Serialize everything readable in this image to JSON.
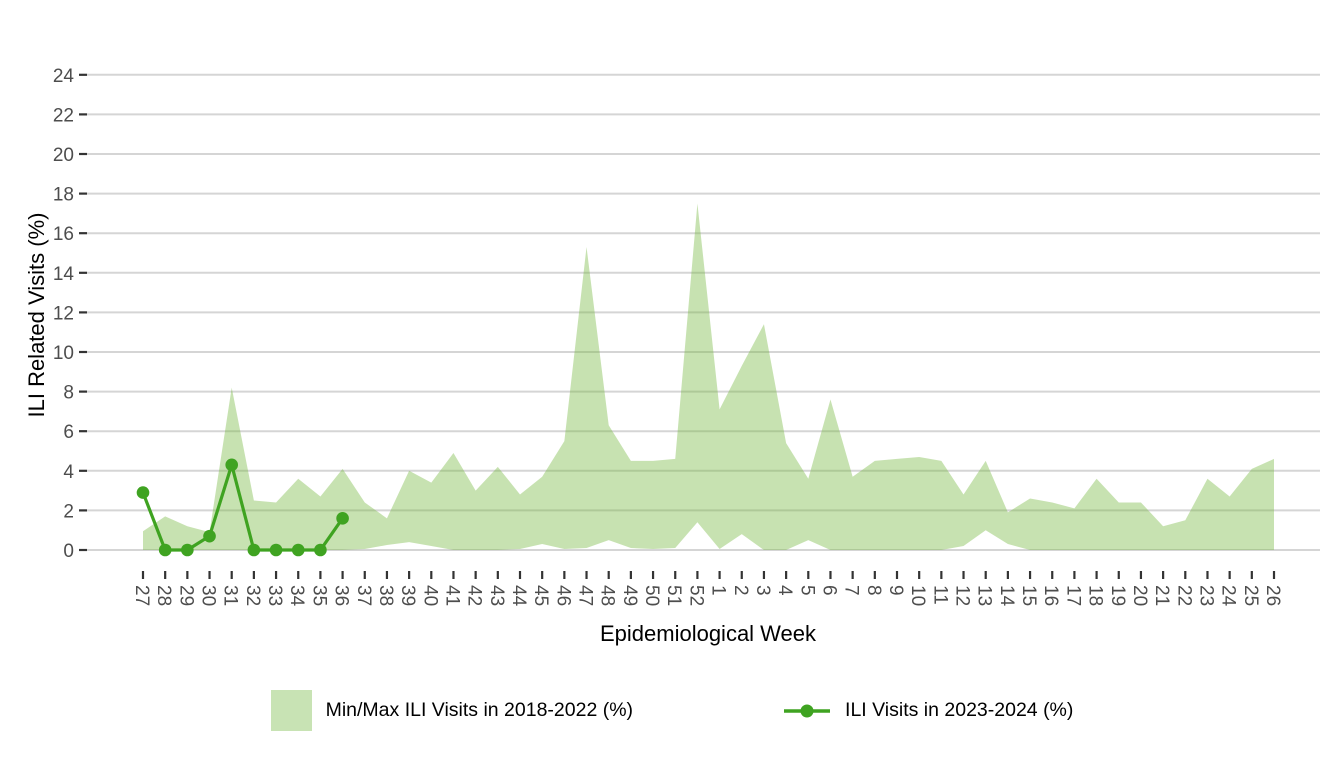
{
  "chart_data": {
    "type": "area",
    "title": "",
    "xlabel": "Epidemiological Week",
    "ylabel": "ILI Related Visits (%)",
    "ylim": [
      0,
      24
    ],
    "yticks": [
      0,
      2,
      4,
      6,
      8,
      10,
      12,
      14,
      16,
      18,
      20,
      22,
      24
    ],
    "grid": "major-horizontal-on",
    "legend_position": "bottom",
    "categories": [
      "27",
      "28",
      "29",
      "30",
      "31",
      "32",
      "33",
      "34",
      "35",
      "36",
      "37",
      "38",
      "39",
      "40",
      "41",
      "42",
      "43",
      "44",
      "45",
      "46",
      "47",
      "48",
      "49",
      "50",
      "51",
      "52",
      "1",
      "2",
      "3",
      "4",
      "5",
      "6",
      "7",
      "8",
      "9",
      "10",
      "11",
      "12",
      "13",
      "14",
      "15",
      "16",
      "17",
      "18",
      "19",
      "20",
      "21",
      "22",
      "23",
      "24",
      "25",
      "26"
    ],
    "series": [
      {
        "name": "Min/Max ILI Visits in 2018-2022 (%)",
        "kind": "band",
        "max": [
          0.95,
          1.7,
          1.2,
          0.9,
          8.2,
          2.5,
          2.4,
          3.6,
          2.7,
          4.1,
          2.4,
          1.6,
          4.0,
          3.4,
          4.9,
          3.0,
          4.2,
          2.8,
          3.7,
          5.5,
          15.3,
          6.3,
          4.5,
          4.5,
          4.6,
          17.5,
          7.1,
          9.3,
          11.4,
          5.4,
          3.6,
          7.6,
          3.7,
          4.5,
          4.6,
          4.7,
          4.5,
          2.8,
          4.5,
          1.9,
          2.6,
          2.4,
          2.1,
          3.6,
          2.4,
          2.4,
          1.2,
          1.5,
          3.6,
          2.7,
          4.1,
          4.6
        ],
        "min": [
          0,
          0,
          0,
          0,
          0,
          0,
          0,
          0,
          0,
          0,
          0.05,
          0.25,
          0.4,
          0.2,
          0,
          0,
          0,
          0.05,
          0.3,
          0.05,
          0.1,
          0.5,
          0.1,
          0.05,
          0.1,
          1.4,
          0.05,
          0.8,
          0,
          0,
          0.5,
          0,
          0,
          0,
          0,
          0,
          0,
          0.2,
          1.0,
          0.3,
          0,
          0,
          0,
          0,
          0,
          0,
          0,
          0,
          0,
          0,
          0,
          0
        ]
      },
      {
        "name": "ILI Visits in 2023-2024 (%)",
        "kind": "line-with-points",
        "start_category_index": 0,
        "values": [
          2.9,
          0,
          0,
          0.7,
          4.3,
          0,
          0,
          0,
          0,
          1.6
        ]
      }
    ]
  },
  "legend": {
    "items": [
      {
        "label": "Min/Max ILI Visits in 2018-2022 (%)",
        "swatch": "area-fill"
      },
      {
        "label": "ILI Visits in 2023-2024 (%)",
        "swatch": "line-with-point"
      }
    ]
  },
  "colors": {
    "band_fill_solid": "#c8e3b4",
    "band_fill_base": "#79b944",
    "band_fill_opacity": 0.42,
    "line_green": "#3fa321",
    "gridline": "#d5d5d5",
    "tick_mark": "#333333",
    "tick_label": "#4d4d4d",
    "axis_title": "#000000",
    "background": "#ffffff"
  }
}
